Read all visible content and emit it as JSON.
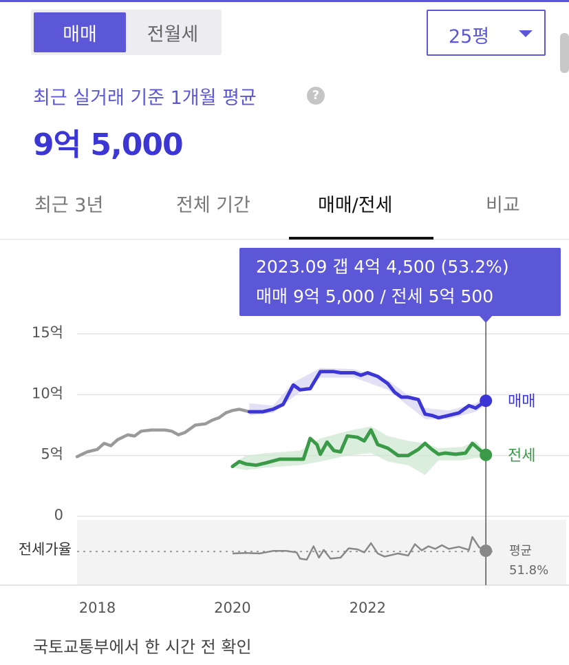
{
  "toggle": {
    "sale_label": "매매",
    "lease_label": "전월세",
    "active": "sale"
  },
  "size_select": {
    "value": "25평"
  },
  "subtitle": "최근 실거래 기준 1개월 평균",
  "help_icon": "?",
  "price": "9억 5,000",
  "tabs": [
    {
      "label": "최근 3년",
      "active": false
    },
    {
      "label": "전체 기간",
      "active": false
    },
    {
      "label": "매매/전세",
      "active": true
    },
    {
      "label": "비교",
      "active": false
    }
  ],
  "footer": "국토교통부에서 한 시간 전 확인",
  "colors": {
    "accent": "#5b57d6",
    "sale": "#3c36d4",
    "lease": "#3a9a48",
    "history": "#9a9a9a",
    "ratio": "#888888"
  },
  "chart_data": {
    "type": "line",
    "ylim": [
      0,
      15
    ],
    "y_ticks": [
      {
        "value": 15,
        "label": "15억"
      },
      {
        "value": 10,
        "label": "10억"
      },
      {
        "value": 5,
        "label": "5억"
      },
      {
        "value": 0,
        "label": "0"
      }
    ],
    "x_ticks": [
      {
        "value": 2018.0,
        "label": "2018"
      },
      {
        "value": 2020.0,
        "label": "2020"
      },
      {
        "value": 2022.0,
        "label": "2022"
      }
    ],
    "xlim": [
      2017.7,
      2023.85
    ],
    "tooltip": {
      "x": 2023.75,
      "line1": "2023.09  갭 4억 4,500 (53.2%)",
      "line2": "매매 9억 5,000 / 전세 5억 500"
    },
    "series": [
      {
        "name": "매매",
        "style": "history",
        "points": [
          [
            2017.7,
            4.9
          ],
          [
            2017.85,
            5.3
          ],
          [
            2018.0,
            5.5
          ],
          [
            2018.1,
            6.0
          ],
          [
            2018.2,
            5.8
          ],
          [
            2018.3,
            6.3
          ],
          [
            2018.45,
            6.7
          ],
          [
            2018.55,
            6.6
          ],
          [
            2018.65,
            7.0
          ],
          [
            2018.8,
            7.1
          ],
          [
            2019.0,
            7.1
          ],
          [
            2019.1,
            7.0
          ],
          [
            2019.2,
            6.7
          ],
          [
            2019.3,
            6.9
          ],
          [
            2019.45,
            7.5
          ],
          [
            2019.6,
            7.6
          ],
          [
            2019.7,
            7.9
          ],
          [
            2019.8,
            8.1
          ],
          [
            2019.9,
            8.5
          ],
          [
            2020.0,
            8.7
          ],
          [
            2020.1,
            8.8
          ],
          [
            2020.25,
            8.6
          ]
        ]
      },
      {
        "name": "매매",
        "style": "main",
        "points": [
          [
            2020.25,
            8.6
          ],
          [
            2020.45,
            8.6
          ],
          [
            2020.6,
            8.8
          ],
          [
            2020.75,
            9.2
          ],
          [
            2020.9,
            10.8
          ],
          [
            2021.0,
            10.4
          ],
          [
            2021.15,
            10.5
          ],
          [
            2021.3,
            11.9
          ],
          [
            2021.5,
            11.9
          ],
          [
            2021.6,
            11.8
          ],
          [
            2021.8,
            11.8
          ],
          [
            2021.9,
            11.6
          ],
          [
            2022.0,
            11.8
          ],
          [
            2022.15,
            11.5
          ],
          [
            2022.3,
            10.9
          ],
          [
            2022.4,
            10.2
          ],
          [
            2022.5,
            9.8
          ],
          [
            2022.6,
            9.8
          ],
          [
            2022.75,
            9.6
          ],
          [
            2022.85,
            8.4
          ],
          [
            2022.95,
            8.3
          ],
          [
            2023.05,
            8.1
          ],
          [
            2023.2,
            8.3
          ],
          [
            2023.35,
            8.5
          ],
          [
            2023.5,
            9.1
          ],
          [
            2023.6,
            8.9
          ],
          [
            2023.75,
            9.5
          ]
        ],
        "band": [
          [
            2020.25,
            8.3,
            9.3
          ],
          [
            2020.6,
            8.5,
            9.1
          ],
          [
            2020.9,
            9.8,
            11.0
          ],
          [
            2021.3,
            11.4,
            12.2
          ],
          [
            2021.8,
            11.4,
            12.1
          ],
          [
            2022.3,
            10.4,
            11.2
          ],
          [
            2022.85,
            8.0,
            8.9
          ],
          [
            2023.2,
            8.0,
            8.7
          ],
          [
            2023.6,
            8.6,
            9.3
          ],
          [
            2023.75,
            9.2,
            9.8
          ]
        ]
      },
      {
        "name": "전세",
        "style": "main",
        "points": [
          [
            2020.0,
            4.1
          ],
          [
            2020.1,
            4.5
          ],
          [
            2020.2,
            4.3
          ],
          [
            2020.35,
            4.2
          ],
          [
            2020.5,
            4.4
          ],
          [
            2020.7,
            4.7
          ],
          [
            2020.85,
            4.7
          ],
          [
            2021.0,
            4.7
          ],
          [
            2021.05,
            4.7
          ],
          [
            2021.15,
            6.4
          ],
          [
            2021.25,
            5.9
          ],
          [
            2021.3,
            5.1
          ],
          [
            2021.4,
            6.1
          ],
          [
            2021.5,
            5.4
          ],
          [
            2021.6,
            5.3
          ],
          [
            2021.7,
            6.6
          ],
          [
            2021.85,
            6.5
          ],
          [
            2021.95,
            6.2
          ],
          [
            2022.05,
            7.1
          ],
          [
            2022.15,
            5.9
          ],
          [
            2022.3,
            5.6
          ],
          [
            2022.45,
            5.0
          ],
          [
            2022.6,
            5.0
          ],
          [
            2022.75,
            5.5
          ],
          [
            2022.85,
            6.0
          ],
          [
            2022.95,
            5.5
          ],
          [
            2023.05,
            5.1
          ],
          [
            2023.15,
            5.2
          ],
          [
            2023.3,
            5.1
          ],
          [
            2023.45,
            5.2
          ],
          [
            2023.55,
            6.0
          ],
          [
            2023.65,
            5.5
          ],
          [
            2023.75,
            5.05
          ]
        ],
        "band": [
          [
            2020.0,
            4.0,
            4.3
          ],
          [
            2020.2,
            3.8,
            5.0
          ],
          [
            2020.5,
            4.0,
            5.2
          ],
          [
            2021.0,
            4.2,
            5.4
          ],
          [
            2021.3,
            4.5,
            6.4
          ],
          [
            2021.7,
            5.0,
            7.0
          ],
          [
            2022.05,
            5.2,
            7.4
          ],
          [
            2022.3,
            4.5,
            6.6
          ],
          [
            2022.6,
            4.2,
            6.2
          ],
          [
            2022.85,
            3.4,
            6.0
          ],
          [
            2023.05,
            4.6,
            5.6
          ],
          [
            2023.4,
            4.6,
            5.7
          ],
          [
            2023.6,
            4.8,
            6.2
          ],
          [
            2023.75,
            4.8,
            5.3
          ]
        ]
      }
    ],
    "end_labels": [
      {
        "series": "매매",
        "label": "매매"
      },
      {
        "series": "전세",
        "label": "전세"
      }
    ],
    "ratio": {
      "label": "전세가율",
      "average_label": "평균",
      "average_value": "51.8%",
      "ylim": [
        0,
        100
      ],
      "average": 51.8,
      "points": [
        [
          2020.0,
          48
        ],
        [
          2020.2,
          49
        ],
        [
          2020.4,
          48
        ],
        [
          2020.6,
          53
        ],
        [
          2020.8,
          53
        ],
        [
          2020.95,
          50
        ],
        [
          2021.0,
          38
        ],
        [
          2021.1,
          36
        ],
        [
          2021.2,
          62
        ],
        [
          2021.28,
          40
        ],
        [
          2021.35,
          55
        ],
        [
          2021.45,
          38
        ],
        [
          2021.6,
          40
        ],
        [
          2021.72,
          58
        ],
        [
          2021.85,
          56
        ],
        [
          2021.95,
          50
        ],
        [
          2022.05,
          68
        ],
        [
          2022.15,
          48
        ],
        [
          2022.25,
          42
        ],
        [
          2022.35,
          45
        ],
        [
          2022.45,
          48
        ],
        [
          2022.6,
          44
        ],
        [
          2022.7,
          66
        ],
        [
          2022.8,
          54
        ],
        [
          2022.9,
          62
        ],
        [
          2023.0,
          57
        ],
        [
          2023.1,
          64
        ],
        [
          2023.2,
          57
        ],
        [
          2023.35,
          61
        ],
        [
          2023.5,
          55
        ],
        [
          2023.55,
          80
        ],
        [
          2023.65,
          60
        ],
        [
          2023.75,
          53.2
        ]
      ]
    }
  }
}
